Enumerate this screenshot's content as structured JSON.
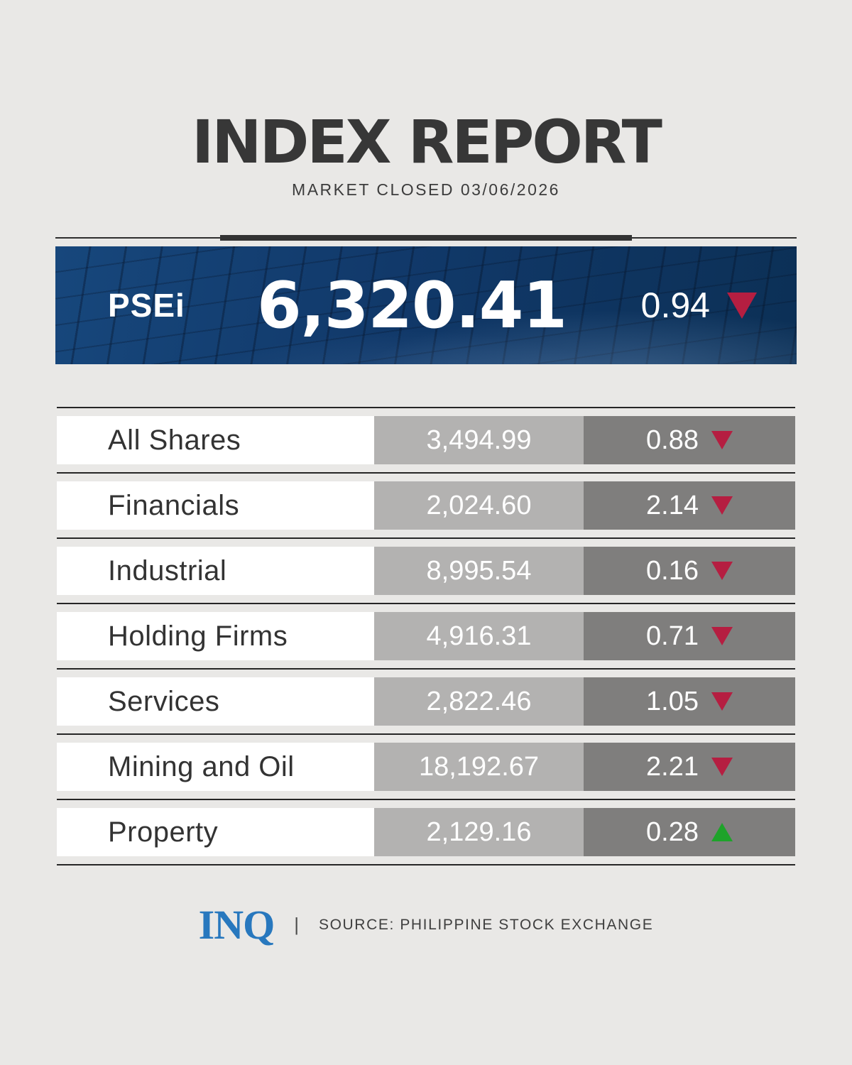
{
  "colors": {
    "accent_red": "#b51e41",
    "accent_green": "#1ea32a",
    "banner_blue": "#11396a",
    "logo_blue": "#2878be",
    "cell_value_gray": "#b3b2b1",
    "cell_change_gray": "#7f7e7d"
  },
  "header": {
    "title": "INDEX REPORT",
    "subtitle": "MARKET CLOSED 03/06/2026"
  },
  "hero": {
    "index_name": "PSEi",
    "value": "6,320.41",
    "change": "0.94",
    "direction": "down"
  },
  "table": {
    "rows": [
      {
        "label": "All Shares",
        "value": "3,494.99",
        "change": "0.88",
        "direction": "down"
      },
      {
        "label": "Financials",
        "value": "2,024.60",
        "change": "2.14",
        "direction": "down"
      },
      {
        "label": "Industrial",
        "value": "8,995.54",
        "change": "0.16",
        "direction": "down"
      },
      {
        "label": "Holding Firms",
        "value": "4,916.31",
        "change": "0.71",
        "direction": "down"
      },
      {
        "label": "Services",
        "value": "2,822.46",
        "change": "1.05",
        "direction": "down"
      },
      {
        "label": "Mining and Oil",
        "value": "18,192.67",
        "change": "2.21",
        "direction": "down"
      },
      {
        "label": "Property",
        "value": "2,129.16",
        "change": "0.28",
        "direction": "up"
      }
    ]
  },
  "footer": {
    "logo_text": "INQ",
    "divider": "|",
    "source": "SOURCE: PHILIPPINE STOCK EXCHANGE"
  },
  "chart_data": {
    "type": "table",
    "title": "INDEX REPORT",
    "subtitle": "MARKET CLOSED 03/06/2026",
    "headline_index": {
      "name": "PSEi",
      "value": 6320.41,
      "change_pct": 0.94,
      "direction": "down"
    },
    "columns": [
      "index",
      "value",
      "change_pct",
      "direction"
    ],
    "rows": [
      {
        "index": "All Shares",
        "value": 3494.99,
        "change_pct": 0.88,
        "direction": "down"
      },
      {
        "index": "Financials",
        "value": 2024.6,
        "change_pct": 2.14,
        "direction": "down"
      },
      {
        "index": "Industrial",
        "value": 8995.54,
        "change_pct": 0.16,
        "direction": "down"
      },
      {
        "index": "Holding Firms",
        "value": 4916.31,
        "change_pct": 0.71,
        "direction": "down"
      },
      {
        "index": "Services",
        "value": 2822.46,
        "change_pct": 1.05,
        "direction": "down"
      },
      {
        "index": "Mining and Oil",
        "value": 18192.67,
        "change_pct": 2.21,
        "direction": "down"
      },
      {
        "index": "Property",
        "value": 2129.16,
        "change_pct": 0.28,
        "direction": "up"
      }
    ],
    "source": "PHILIPPINE STOCK EXCHANGE"
  }
}
